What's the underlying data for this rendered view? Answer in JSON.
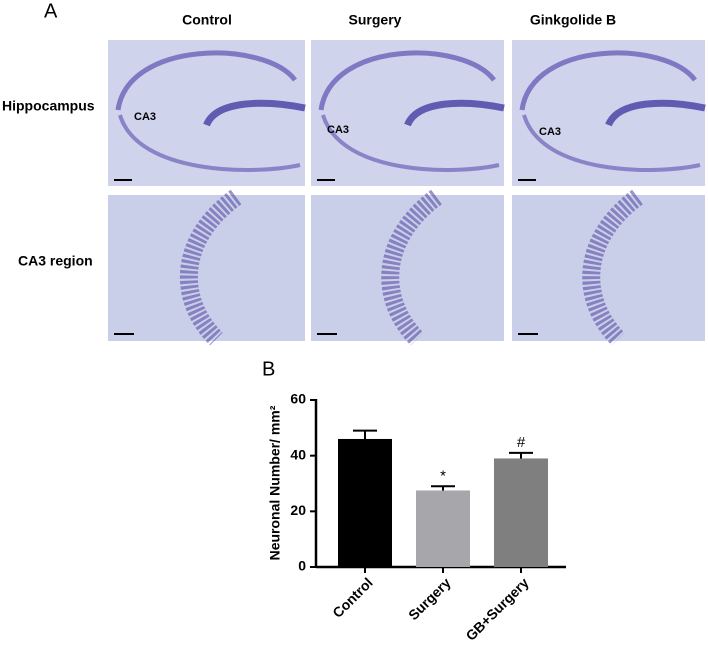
{
  "panel_a": {
    "label": "A",
    "columns": [
      "Control",
      "Surgery",
      "Ginkgolide B"
    ],
    "rows": [
      "Hippocampus",
      "CA3 region"
    ],
    "image_labels": [
      "CA3",
      "CA3",
      "CA3"
    ]
  },
  "chart_data": {
    "type": "bar",
    "panel_label": "B",
    "ylabel": "Neuronal Number/ mm²",
    "categories": [
      "Control",
      "Surgery",
      "GB+Surgery"
    ],
    "values": [
      46,
      27.5,
      39
    ],
    "errors": [
      3,
      1.5,
      2
    ],
    "annotations": [
      null,
      "*",
      "#"
    ],
    "colors": [
      "#000000",
      "#a7a7ab",
      "#7f7f7f"
    ],
    "ylim": [
      0,
      60
    ],
    "yticks": [
      0,
      20,
      40,
      60
    ],
    "grid": false
  }
}
